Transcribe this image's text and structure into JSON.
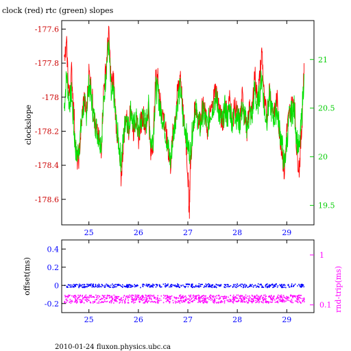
{
  "chart_data": [
    {
      "type": "line",
      "title": "clock (red) rtc (green) slopes",
      "ylabel": "clockslope",
      "xlabel": "",
      "xlim": [
        24.45,
        29.55
      ],
      "ylim": [
        -178.75,
        -177.55
      ],
      "y2lim": [
        19.3,
        21.4
      ],
      "grid": false,
      "xticks": [
        "25",
        "26",
        "27",
        "28",
        "29"
      ],
      "yticks": [
        "-177.6",
        "-177.8",
        "-178",
        "-178.2",
        "-178.4",
        "-178.6"
      ],
      "y2ticks": [
        "21",
        "20.5",
        "20",
        "19.5"
      ],
      "colors": {
        "clock": "#ff0000",
        "rtc": "#00e000"
      },
      "series": [
        {
          "axis": "left",
          "color": "#ff0000",
          "x": [
            24.5,
            24.55,
            24.6,
            24.65,
            24.7,
            24.75,
            24.8,
            24.85,
            24.9,
            24.95,
            25.0,
            25.05,
            25.1,
            25.15,
            25.2,
            25.25,
            25.3,
            25.35,
            25.4,
            25.45,
            25.5,
            25.55,
            25.6,
            25.65,
            25.7,
            25.75,
            25.8,
            25.85,
            25.9,
            25.95,
            26.0,
            26.05,
            26.1,
            26.15,
            26.2,
            26.25,
            26.3,
            26.35,
            26.4,
            26.45,
            26.5,
            26.55,
            26.6,
            26.65,
            26.7,
            26.75,
            26.8,
            26.85,
            26.9,
            26.95,
            27.0,
            27.03,
            27.05,
            27.1,
            27.15,
            27.2,
            27.25,
            27.3,
            27.35,
            27.4,
            27.45,
            27.5,
            27.55,
            27.6,
            27.65,
            27.7,
            27.75,
            27.8,
            27.85,
            27.9,
            27.95,
            28.0,
            28.05,
            28.1,
            28.15,
            28.2,
            28.25,
            28.3,
            28.35,
            28.4,
            28.45,
            28.5,
            28.55,
            28.6,
            28.65,
            28.7,
            28.75,
            28.8,
            28.85,
            28.9,
            28.95,
            29.0,
            29.05,
            29.1,
            29.15,
            29.2,
            29.25,
            29.3,
            29.35
          ],
          "y": [
            -177.8,
            -177.7,
            -178.0,
            -177.85,
            -178.1,
            -178.38,
            -178.35,
            -178.15,
            -178.0,
            -178.1,
            -177.85,
            -177.95,
            -178.1,
            -178.2,
            -178.25,
            -178.3,
            -177.95,
            -177.82,
            -177.62,
            -177.92,
            -177.9,
            -178.15,
            -178.3,
            -178.48,
            -178.25,
            -178.1,
            -178.2,
            -178.05,
            -178.2,
            -178.1,
            -178.25,
            -178.15,
            -178.1,
            -178.2,
            -178.05,
            -178.35,
            -178.25,
            -177.9,
            -177.88,
            -178.05,
            -178.1,
            -178.2,
            -178.3,
            -178.4,
            -178.2,
            -178.1,
            -177.95,
            -177.85,
            -178.1,
            -178.2,
            -178.45,
            -178.68,
            -178.4,
            -178.2,
            -178.05,
            -178.1,
            -178.15,
            -178.05,
            -178.1,
            -178.2,
            -178.1,
            -178.05,
            -177.95,
            -178.0,
            -178.1,
            -178.15,
            -178.05,
            -178.1,
            -178.0,
            -178.15,
            -178.05,
            -178.1,
            -178.15,
            -178.0,
            -178.1,
            -178.2,
            -178.05,
            -178.1,
            -177.85,
            -178.0,
            -177.9,
            -177.72,
            -178.05,
            -178.1,
            -177.95,
            -178.05,
            -178.1,
            -178.0,
            -178.2,
            -178.3,
            -178.45,
            -178.2,
            -178.1,
            -178.05,
            -178.0,
            -178.3,
            -178.42,
            -178.2,
            -177.8
          ]
        },
        {
          "axis": "right",
          "color": "#00e000",
          "x": [
            24.5,
            24.55,
            24.6,
            24.65,
            24.7,
            24.75,
            24.8,
            24.85,
            24.9,
            24.95,
            25.0,
            25.05,
            25.1,
            25.15,
            25.2,
            25.25,
            25.3,
            25.35,
            25.4,
            25.45,
            25.5,
            25.55,
            25.6,
            25.65,
            25.7,
            25.75,
            25.8,
            25.85,
            25.9,
            25.95,
            26.0,
            26.05,
            26.1,
            26.15,
            26.2,
            26.25,
            26.3,
            26.35,
            26.4,
            26.45,
            26.5,
            26.55,
            26.6,
            26.65,
            26.7,
            26.75,
            26.8,
            26.85,
            26.9,
            26.95,
            27.0,
            27.05,
            27.1,
            27.15,
            27.2,
            27.25,
            27.3,
            27.35,
            27.4,
            27.45,
            27.5,
            27.55,
            27.6,
            27.65,
            27.7,
            27.75,
            27.8,
            27.85,
            27.9,
            27.95,
            28.0,
            28.05,
            28.1,
            28.15,
            28.2,
            28.25,
            28.3,
            28.35,
            28.4,
            28.45,
            28.5,
            28.55,
            28.6,
            28.65,
            28.7,
            28.75,
            28.8,
            28.85,
            28.9,
            28.95,
            29.0,
            29.05,
            29.1,
            29.15,
            29.2,
            29.25,
            29.3,
            29.35
          ],
          "y": [
            20.5,
            20.85,
            20.55,
            20.65,
            20.25,
            20.0,
            20.1,
            20.35,
            20.55,
            20.45,
            20.75,
            20.6,
            20.4,
            20.3,
            20.2,
            20.15,
            20.55,
            20.9,
            21.15,
            20.6,
            20.65,
            20.35,
            20.15,
            19.95,
            20.2,
            20.45,
            20.3,
            20.5,
            20.3,
            20.4,
            20.25,
            20.35,
            20.45,
            20.3,
            20.55,
            20.15,
            20.2,
            20.7,
            20.65,
            20.45,
            20.4,
            20.25,
            20.1,
            19.95,
            20.2,
            20.4,
            20.6,
            20.7,
            20.4,
            20.3,
            20.1,
            20.05,
            20.3,
            20.5,
            20.4,
            20.3,
            20.45,
            20.4,
            20.3,
            20.45,
            20.5,
            20.6,
            20.55,
            20.4,
            20.35,
            20.5,
            20.4,
            20.5,
            20.35,
            20.45,
            20.4,
            20.35,
            20.5,
            20.4,
            20.3,
            20.45,
            20.4,
            20.7,
            20.5,
            20.65,
            20.85,
            20.45,
            20.4,
            20.6,
            20.45,
            20.4,
            20.5,
            20.3,
            20.15,
            19.9,
            20.15,
            20.4,
            20.45,
            20.5,
            20.2,
            20.05,
            20.4,
            20.85
          ]
        }
      ]
    },
    {
      "type": "scatter",
      "ylabel": "offset(ms)",
      "y2label": "rnd-trip(ms)",
      "xlim": [
        24.45,
        29.55
      ],
      "ylim": [
        -0.3,
        0.5
      ],
      "y2_scale": "log",
      "y2lim": [
        0.07,
        2.0
      ],
      "xticks": [
        "25",
        "26",
        "27",
        "28",
        "29"
      ],
      "yticks": [
        "0.4",
        "0.2",
        "0",
        "-0.2"
      ],
      "y2ticks": [
        "1",
        "0.1"
      ],
      "colors": {
        "offset": "#0000ff",
        "rndtrip": "#ff00ff"
      },
      "series": [
        {
          "name": "offset(ms)",
          "axis": "left",
          "color": "#0000ff",
          "x_range": [
            24.5,
            29.35
          ],
          "y_center": 0.0,
          "y_spread": 0.02
        },
        {
          "name": "rnd-trip(ms)",
          "axis": "right",
          "color": "#ff00ff",
          "x_range": [
            24.5,
            29.35
          ],
          "y_low": 0.11,
          "y_high": 0.16
        }
      ],
      "footer": "2010-01-24 fluxon.physics.ubc.ca"
    }
  ]
}
